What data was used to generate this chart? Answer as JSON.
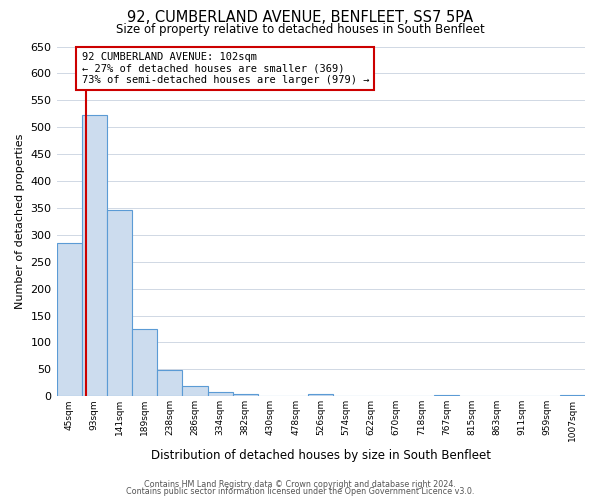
{
  "title": "92, CUMBERLAND AVENUE, BENFLEET, SS7 5PA",
  "subtitle": "Size of property relative to detached houses in South Benfleet",
  "xlabel": "Distribution of detached houses by size in South Benfleet",
  "ylabel": "Number of detached properties",
  "bin_labels": [
    "45sqm",
    "93sqm",
    "141sqm",
    "189sqm",
    "238sqm",
    "286sqm",
    "334sqm",
    "382sqm",
    "430sqm",
    "478sqm",
    "526sqm",
    "574sqm",
    "622sqm",
    "670sqm",
    "718sqm",
    "767sqm",
    "815sqm",
    "863sqm",
    "911sqm",
    "959sqm",
    "1007sqm"
  ],
  "bar_values": [
    285,
    523,
    347,
    125,
    48,
    20,
    8,
    5,
    0,
    0,
    5,
    0,
    0,
    0,
    0,
    3,
    0,
    0,
    0,
    0,
    3
  ],
  "bar_color": "#ccdcee",
  "bar_edge_color": "#5b9bd5",
  "vline_color": "#cc0000",
  "annotation_text": "92 CUMBERLAND AVENUE: 102sqm\n← 27% of detached houses are smaller (369)\n73% of semi-detached houses are larger (979) →",
  "ylim": [
    0,
    650
  ],
  "yticks": [
    0,
    50,
    100,
    150,
    200,
    250,
    300,
    350,
    400,
    450,
    500,
    550,
    600,
    650
  ],
  "footer_line1": "Contains HM Land Registry data © Crown copyright and database right 2024.",
  "footer_line2": "Contains public sector information licensed under the Open Government Licence v3.0.",
  "bg_color": "#ffffff",
  "grid_color": "#d0d8e4"
}
